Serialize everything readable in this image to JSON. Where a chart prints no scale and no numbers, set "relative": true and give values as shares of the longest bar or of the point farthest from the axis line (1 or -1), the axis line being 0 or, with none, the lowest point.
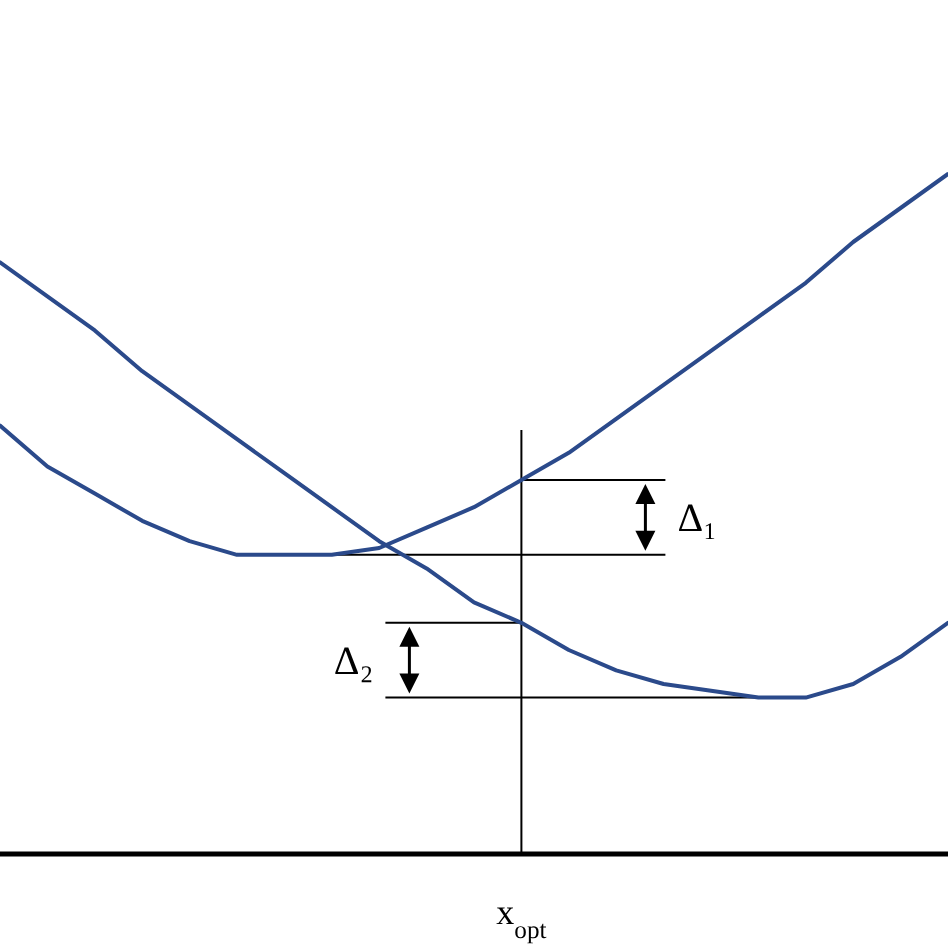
{
  "chart_data": {
    "type": "line",
    "relative": true,
    "marker": "none",
    "line_style": "solid",
    "categories": [
      null,
      null,
      null,
      null,
      null,
      null,
      null,
      null,
      null,
      null,
      null,
      null,
      null,
      null,
      null,
      null,
      null,
      null,
      null,
      null,
      null
    ],
    "series": [
      {
        "color": "#2b4a8b",
        "values": [
          0.87,
          0.82,
          0.77,
          0.71,
          0.66,
          0.61,
          0.56,
          0.51,
          0.46,
          0.42,
          0.37,
          0.34,
          0.3,
          0.27,
          0.25,
          0.24,
          0.23,
          0.23,
          0.25,
          0.29,
          0.34
        ]
      },
      {
        "color": "#2b4a8b",
        "values": [
          0.63,
          0.57,
          0.53,
          0.49,
          0.46,
          0.44,
          0.44,
          0.44,
          0.45,
          0.48,
          0.51,
          0.55,
          0.59,
          0.64,
          0.69,
          0.74,
          0.79,
          0.84,
          0.9,
          0.95,
          1
        ]
      }
    ],
    "annotations": [
      "Δ₁",
      "Δ₂",
      "x$_{opt}$"
    ]
  }
}
